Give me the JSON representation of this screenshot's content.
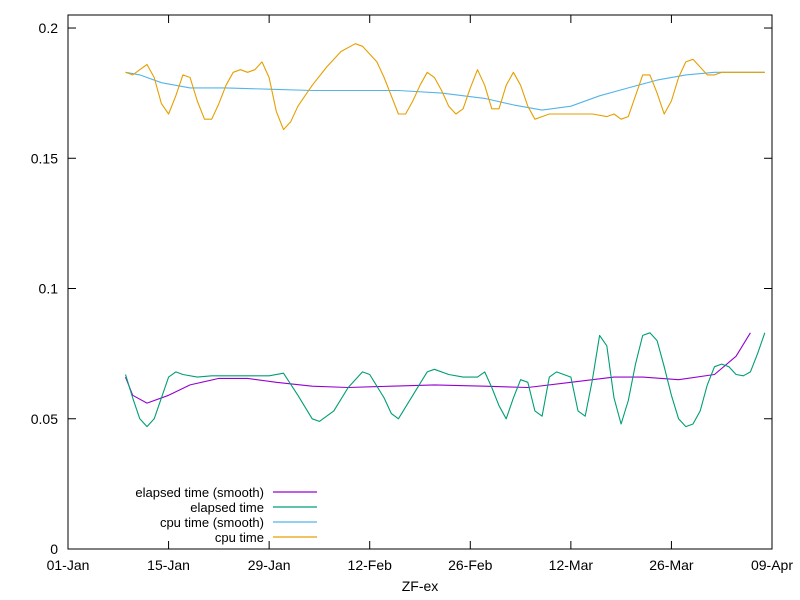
{
  "chart_data": {
    "type": "line",
    "title": "",
    "xlabel": "ZF-ex",
    "ylabel": "",
    "xlim": [
      "2023-01-01",
      "2023-04-09"
    ],
    "ylim": [
      0,
      0.205
    ],
    "x_ticks": [
      {
        "date": "2023-01-01",
        "label": "01-Jan"
      },
      {
        "date": "2023-01-15",
        "label": "15-Jan"
      },
      {
        "date": "2023-01-29",
        "label": "29-Jan"
      },
      {
        "date": "2023-02-12",
        "label": "12-Feb"
      },
      {
        "date": "2023-02-26",
        "label": "26-Feb"
      },
      {
        "date": "2023-03-12",
        "label": "12-Mar"
      },
      {
        "date": "2023-03-26",
        "label": "26-Mar"
      },
      {
        "date": "2023-04-09",
        "label": "09-Apr"
      }
    ],
    "y_ticks": [
      {
        "value": 0,
        "label": "0"
      },
      {
        "value": 0.05,
        "label": "0.05"
      },
      {
        "value": 0.1,
        "label": "0.1"
      },
      {
        "value": 0.15,
        "label": "0.15"
      },
      {
        "value": 0.2,
        "label": "0.2"
      }
    ],
    "grid": false,
    "legend_position": "bottom-left",
    "series": [
      {
        "name": "elapsed time (smooth)",
        "color": "#9400d3",
        "points": [
          [
            "2023-01-09",
            0.066
          ],
          [
            "2023-01-10",
            0.059
          ],
          [
            "2023-01-12",
            0.056
          ],
          [
            "2023-01-15",
            0.059
          ],
          [
            "2023-01-18",
            0.063
          ],
          [
            "2023-01-22",
            0.0655
          ],
          [
            "2023-01-26",
            0.0655
          ],
          [
            "2023-01-30",
            0.064
          ],
          [
            "2023-02-04",
            0.0625
          ],
          [
            "2023-02-09",
            0.062
          ],
          [
            "2023-02-15",
            0.0625
          ],
          [
            "2023-02-21",
            0.063
          ],
          [
            "2023-02-28",
            0.0625
          ],
          [
            "2023-03-06",
            0.062
          ],
          [
            "2023-03-12",
            0.064
          ],
          [
            "2023-03-18",
            0.066
          ],
          [
            "2023-03-22",
            0.066
          ],
          [
            "2023-03-27",
            0.065
          ],
          [
            "2023-04-01",
            0.067
          ],
          [
            "2023-04-04",
            0.074
          ],
          [
            "2023-04-06",
            0.083
          ]
        ]
      },
      {
        "name": "elapsed time",
        "color": "#009e73",
        "points": [
          [
            "2023-01-09",
            0.067
          ],
          [
            "2023-01-10",
            0.058
          ],
          [
            "2023-01-11",
            0.05
          ],
          [
            "2023-01-12",
            0.047
          ],
          [
            "2023-01-13",
            0.05
          ],
          [
            "2023-01-14",
            0.058
          ],
          [
            "2023-01-15",
            0.066
          ],
          [
            "2023-01-16",
            0.068
          ],
          [
            "2023-01-17",
            0.067
          ],
          [
            "2023-01-19",
            0.066
          ],
          [
            "2023-01-21",
            0.0665
          ],
          [
            "2023-01-23",
            0.0665
          ],
          [
            "2023-01-25",
            0.0665
          ],
          [
            "2023-01-27",
            0.0665
          ],
          [
            "2023-01-29",
            0.0665
          ],
          [
            "2023-01-31",
            0.0675
          ],
          [
            "2023-02-02",
            0.059
          ],
          [
            "2023-02-04",
            0.05
          ],
          [
            "2023-02-05",
            0.049
          ],
          [
            "2023-02-07",
            0.053
          ],
          [
            "2023-02-09",
            0.062
          ],
          [
            "2023-02-11",
            0.068
          ],
          [
            "2023-02-12",
            0.067
          ],
          [
            "2023-02-14",
            0.058
          ],
          [
            "2023-02-15",
            0.052
          ],
          [
            "2023-02-16",
            0.05
          ],
          [
            "2023-02-18",
            0.059
          ],
          [
            "2023-02-20",
            0.068
          ],
          [
            "2023-02-21",
            0.069
          ],
          [
            "2023-02-23",
            0.067
          ],
          [
            "2023-02-25",
            0.066
          ],
          [
            "2023-02-27",
            0.066
          ],
          [
            "2023-02-28",
            0.068
          ],
          [
            "2023-03-01",
            0.062
          ],
          [
            "2023-03-02",
            0.055
          ],
          [
            "2023-03-03",
            0.05
          ],
          [
            "2023-03-04",
            0.058
          ],
          [
            "2023-03-05",
            0.065
          ],
          [
            "2023-03-06",
            0.064
          ],
          [
            "2023-03-07",
            0.053
          ],
          [
            "2023-03-08",
            0.051
          ],
          [
            "2023-03-09",
            0.066
          ],
          [
            "2023-03-10",
            0.068
          ],
          [
            "2023-03-11",
            0.067
          ],
          [
            "2023-03-12",
            0.066
          ],
          [
            "2023-03-13",
            0.053
          ],
          [
            "2023-03-14",
            0.051
          ],
          [
            "2023-03-15",
            0.065
          ],
          [
            "2023-03-16",
            0.082
          ],
          [
            "2023-03-17",
            0.078
          ],
          [
            "2023-03-18",
            0.058
          ],
          [
            "2023-03-19",
            0.048
          ],
          [
            "2023-03-20",
            0.057
          ],
          [
            "2023-03-21",
            0.071
          ],
          [
            "2023-03-22",
            0.082
          ],
          [
            "2023-03-23",
            0.083
          ],
          [
            "2023-03-24",
            0.08
          ],
          [
            "2023-03-25",
            0.07
          ],
          [
            "2023-03-26",
            0.059
          ],
          [
            "2023-03-27",
            0.05
          ],
          [
            "2023-03-28",
            0.047
          ],
          [
            "2023-03-29",
            0.048
          ],
          [
            "2023-03-30",
            0.053
          ],
          [
            "2023-03-31",
            0.063
          ],
          [
            "2023-04-01",
            0.07
          ],
          [
            "2023-04-02",
            0.071
          ],
          [
            "2023-04-03",
            0.07
          ],
          [
            "2023-04-04",
            0.067
          ],
          [
            "2023-04-05",
            0.0665
          ],
          [
            "2023-04-06",
            0.068
          ],
          [
            "2023-04-07",
            0.075
          ],
          [
            "2023-04-08",
            0.083
          ]
        ]
      },
      {
        "name": "cpu time (smooth)",
        "color": "#56b4e9",
        "points": [
          [
            "2023-01-09",
            0.183
          ],
          [
            "2023-01-11",
            0.182
          ],
          [
            "2023-01-14",
            0.179
          ],
          [
            "2023-01-18",
            0.177
          ],
          [
            "2023-01-23",
            0.177
          ],
          [
            "2023-01-29",
            0.1765
          ],
          [
            "2023-02-04",
            0.176
          ],
          [
            "2023-02-10",
            0.176
          ],
          [
            "2023-02-16",
            0.176
          ],
          [
            "2023-02-22",
            0.175
          ],
          [
            "2023-02-28",
            0.173
          ],
          [
            "2023-03-04",
            0.1705
          ],
          [
            "2023-03-08",
            0.1685
          ],
          [
            "2023-03-12",
            0.17
          ],
          [
            "2023-03-16",
            0.174
          ],
          [
            "2023-03-20",
            0.177
          ],
          [
            "2023-03-24",
            0.18
          ],
          [
            "2023-03-28",
            0.182
          ],
          [
            "2023-04-01",
            0.183
          ],
          [
            "2023-04-08",
            0.183
          ]
        ]
      },
      {
        "name": "cpu time",
        "color": "#e69f00",
        "points": [
          [
            "2023-01-09",
            0.183
          ],
          [
            "2023-01-10",
            0.182
          ],
          [
            "2023-01-11",
            0.184
          ],
          [
            "2023-01-12",
            0.186
          ],
          [
            "2023-01-13",
            0.181
          ],
          [
            "2023-01-14",
            0.171
          ],
          [
            "2023-01-15",
            0.167
          ],
          [
            "2023-01-16",
            0.174
          ],
          [
            "2023-01-17",
            0.182
          ],
          [
            "2023-01-18",
            0.181
          ],
          [
            "2023-01-19",
            0.172
          ],
          [
            "2023-01-20",
            0.165
          ],
          [
            "2023-01-21",
            0.165
          ],
          [
            "2023-01-22",
            0.171
          ],
          [
            "2023-01-23",
            0.178
          ],
          [
            "2023-01-24",
            0.183
          ],
          [
            "2023-01-25",
            0.184
          ],
          [
            "2023-01-26",
            0.183
          ],
          [
            "2023-01-27",
            0.184
          ],
          [
            "2023-01-28",
            0.187
          ],
          [
            "2023-01-29",
            0.181
          ],
          [
            "2023-01-30",
            0.168
          ],
          [
            "2023-01-31",
            0.161
          ],
          [
            "2023-02-01",
            0.164
          ],
          [
            "2023-02-02",
            0.17
          ],
          [
            "2023-02-04",
            0.178
          ],
          [
            "2023-02-06",
            0.185
          ],
          [
            "2023-02-08",
            0.191
          ],
          [
            "2023-02-10",
            0.194
          ],
          [
            "2023-02-11",
            0.193
          ],
          [
            "2023-02-13",
            0.187
          ],
          [
            "2023-02-14",
            0.181
          ],
          [
            "2023-02-15",
            0.174
          ],
          [
            "2023-02-16",
            0.167
          ],
          [
            "2023-02-17",
            0.167
          ],
          [
            "2023-02-18",
            0.172
          ],
          [
            "2023-02-19",
            0.178
          ],
          [
            "2023-02-20",
            0.183
          ],
          [
            "2023-02-21",
            0.181
          ],
          [
            "2023-02-22",
            0.176
          ],
          [
            "2023-02-23",
            0.17
          ],
          [
            "2023-02-24",
            0.167
          ],
          [
            "2023-02-25",
            0.169
          ],
          [
            "2023-02-26",
            0.177
          ],
          [
            "2023-02-27",
            0.184
          ],
          [
            "2023-02-28",
            0.178
          ],
          [
            "2023-03-01",
            0.169
          ],
          [
            "2023-03-02",
            0.169
          ],
          [
            "2023-03-03",
            0.178
          ],
          [
            "2023-03-04",
            0.183
          ],
          [
            "2023-03-05",
            0.178
          ],
          [
            "2023-03-06",
            0.17
          ],
          [
            "2023-03-07",
            0.165
          ],
          [
            "2023-03-08",
            0.166
          ],
          [
            "2023-03-09",
            0.167
          ],
          [
            "2023-03-11",
            0.167
          ],
          [
            "2023-03-13",
            0.167
          ],
          [
            "2023-03-15",
            0.167
          ],
          [
            "2023-03-17",
            0.166
          ],
          [
            "2023-03-18",
            0.167
          ],
          [
            "2023-03-19",
            0.165
          ],
          [
            "2023-03-20",
            0.166
          ],
          [
            "2023-03-21",
            0.174
          ],
          [
            "2023-03-22",
            0.182
          ],
          [
            "2023-03-23",
            0.182
          ],
          [
            "2023-03-24",
            0.175
          ],
          [
            "2023-03-25",
            0.167
          ],
          [
            "2023-03-26",
            0.172
          ],
          [
            "2023-03-27",
            0.181
          ],
          [
            "2023-03-28",
            0.187
          ],
          [
            "2023-03-29",
            0.188
          ],
          [
            "2023-03-30",
            0.185
          ],
          [
            "2023-03-31",
            0.182
          ],
          [
            "2023-04-01",
            0.182
          ],
          [
            "2023-04-02",
            0.183
          ],
          [
            "2023-04-04",
            0.183
          ],
          [
            "2023-04-06",
            0.183
          ],
          [
            "2023-04-08",
            0.183
          ]
        ]
      }
    ]
  }
}
